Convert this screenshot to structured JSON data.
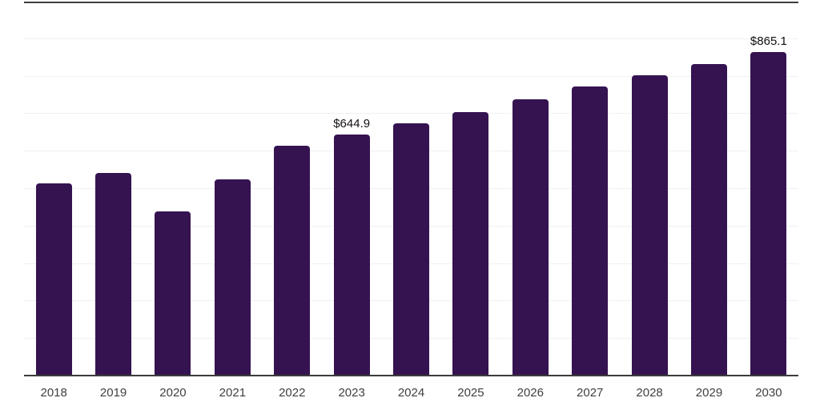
{
  "page": {
    "background_color": "#ffffff"
  },
  "chart_data": {
    "type": "bar",
    "title": "",
    "xlabel": "",
    "ylabel": "",
    "categories": [
      "2018",
      "2019",
      "2020",
      "2021",
      "2022",
      "2023",
      "2024",
      "2025",
      "2026",
      "2027",
      "2028",
      "2029",
      "2030"
    ],
    "values": [
      516,
      542,
      441,
      525,
      616,
      644.9,
      676,
      706,
      740,
      774,
      804,
      834,
      865.1
    ],
    "bar_value_labels": [
      "",
      "",
      "",
      "",
      "",
      "$644.9",
      "",
      "",
      "",
      "",
      "",
      "",
      "$865.1"
    ],
    "ylim": [
      0,
      1000
    ],
    "gridline_step": 100,
    "grid": "horizontal-light",
    "legend_position": "none",
    "colors": {
      "bar": "#351351",
      "axis_line": "#3c3c3c",
      "gridline": "#f0f0f0",
      "tick_label": "#3f3f3f",
      "value_label": "#111111"
    }
  }
}
